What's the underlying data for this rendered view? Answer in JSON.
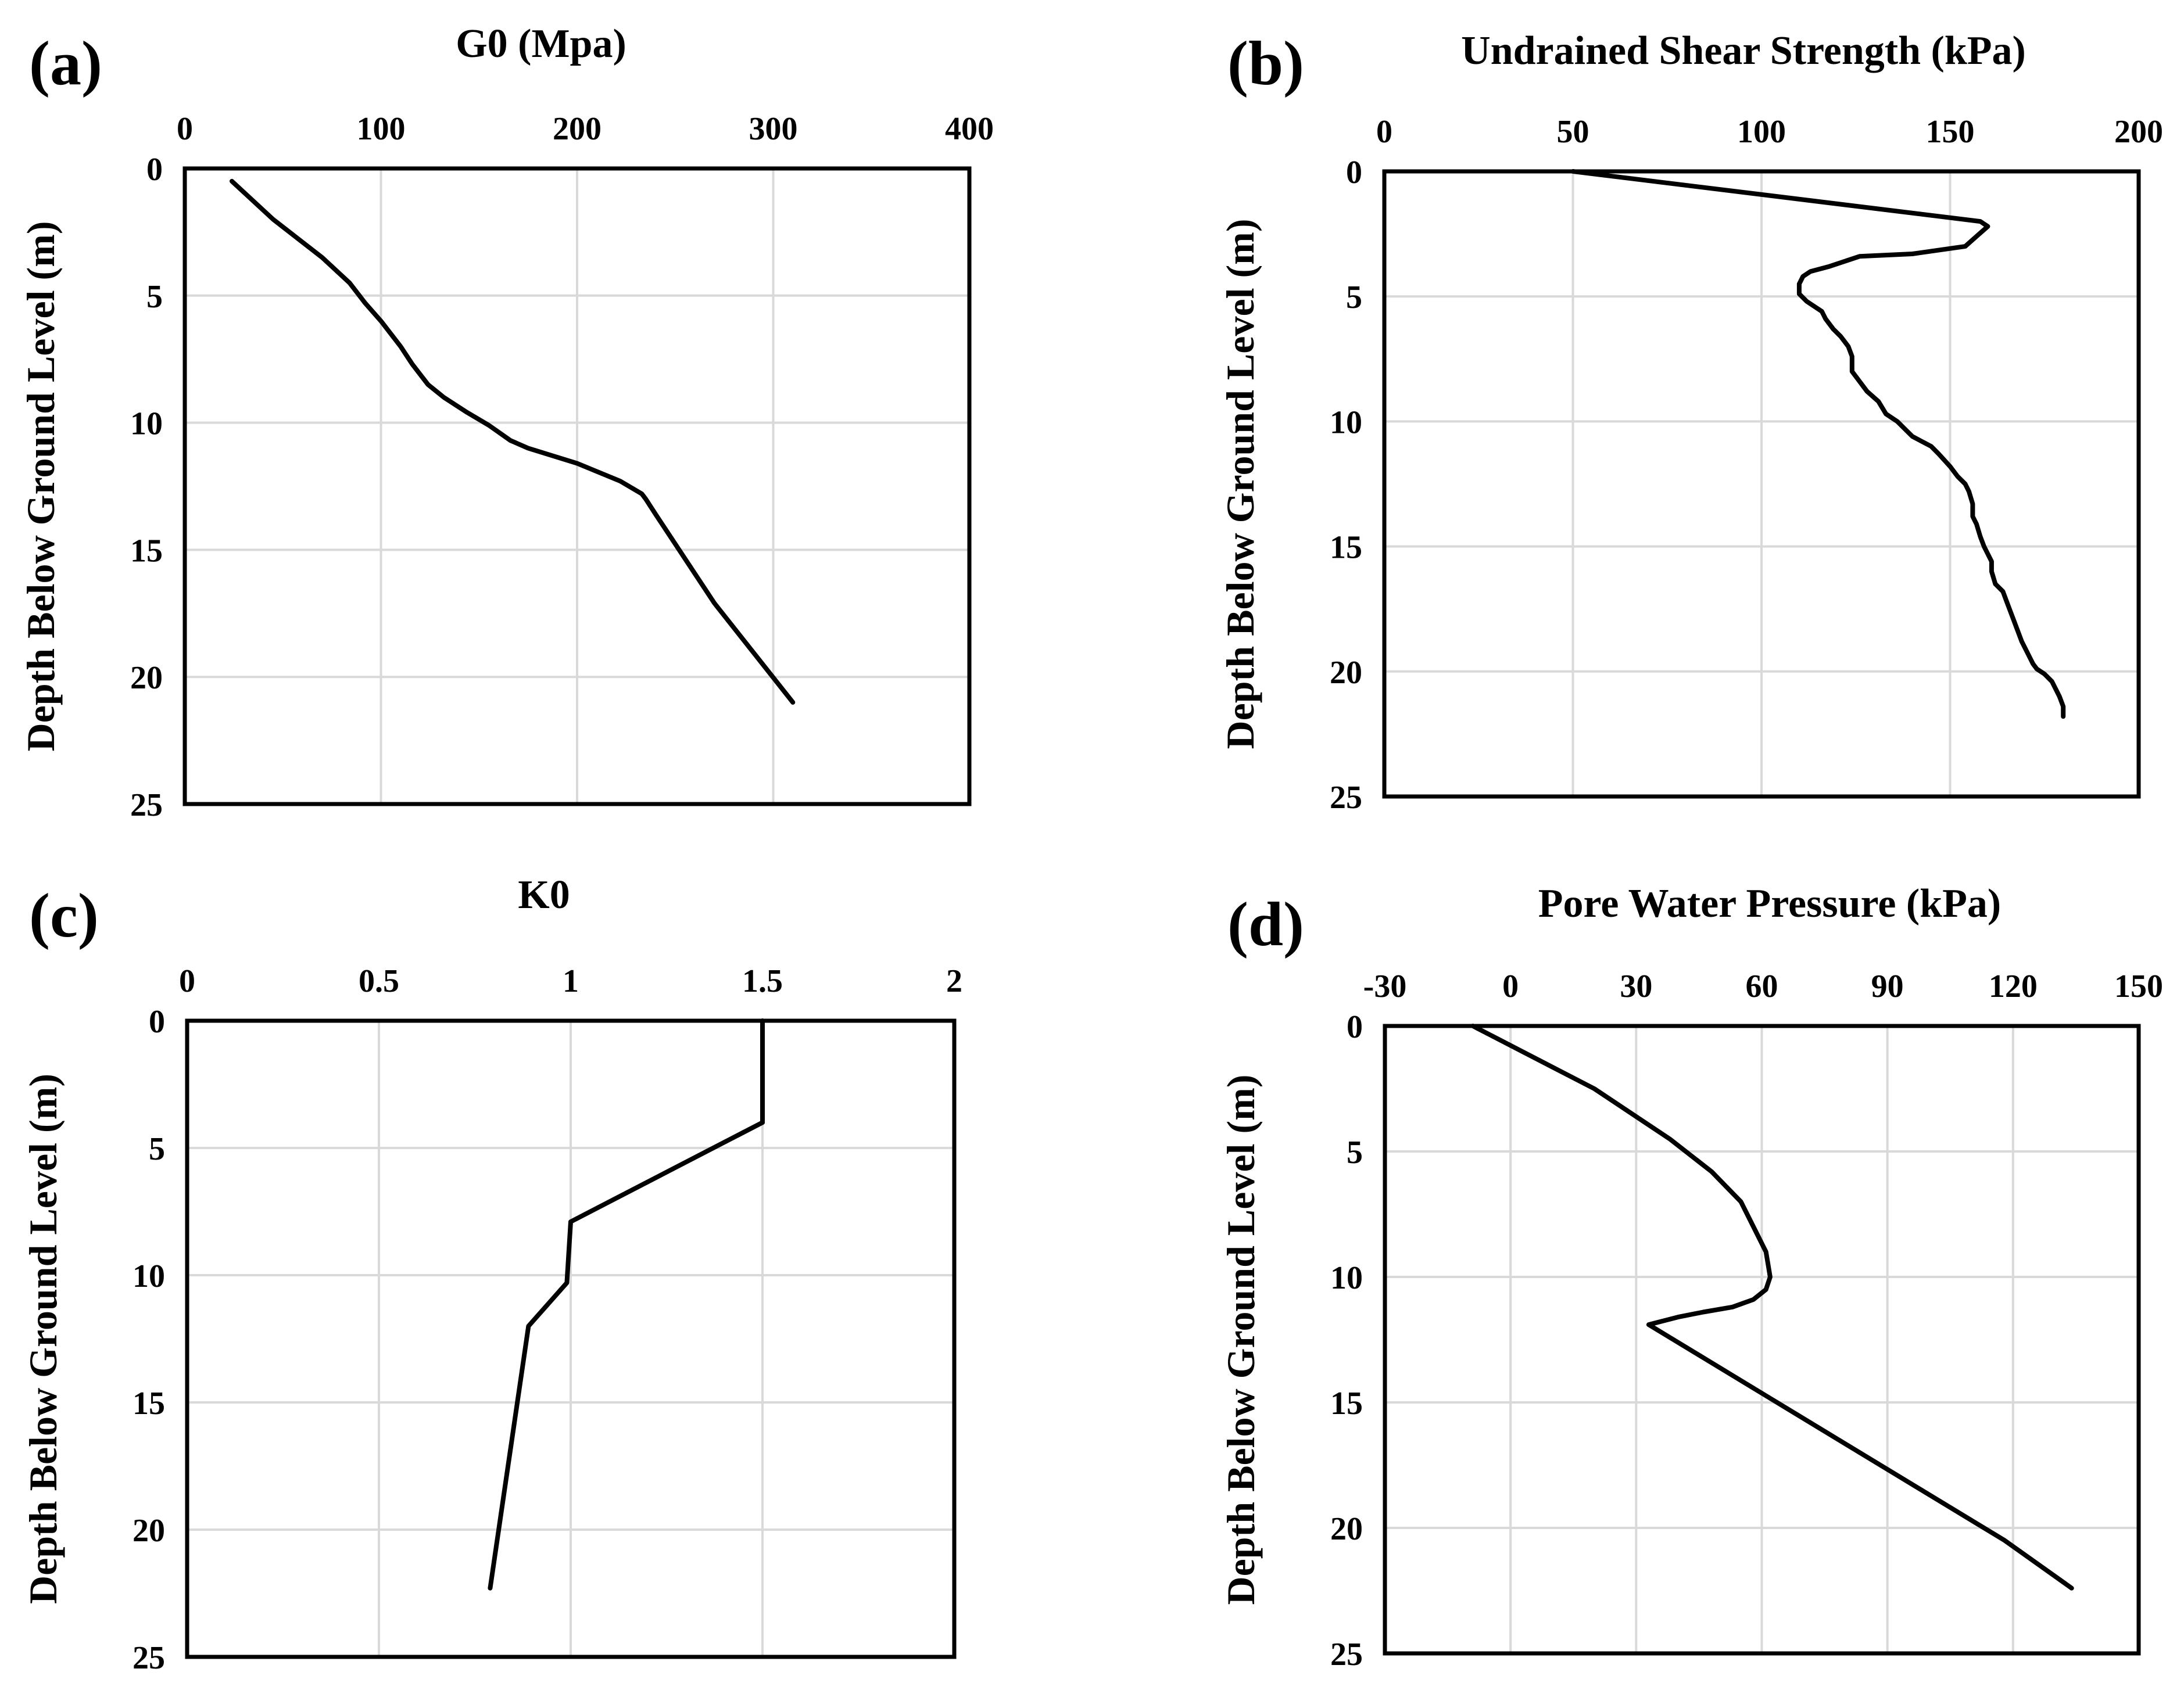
{
  "chart_data": [
    {
      "id": "a",
      "type": "line",
      "panel_label": "(a)",
      "title": "G0 (Mpa)",
      "xlabel": "G0 (Mpa)",
      "ylabel": "Depth Below Ground Level (m)",
      "xlim": [
        0,
        400
      ],
      "ylim": [
        25,
        0
      ],
      "xticks": [
        0,
        100,
        200,
        300,
        400
      ],
      "yticks": [
        0,
        5,
        10,
        15,
        20,
        25
      ],
      "xtick_labels": [
        "0",
        "100",
        "200",
        "300",
        "400"
      ],
      "ytick_labels": [
        "0",
        "5",
        "10",
        "15",
        "20",
        "25"
      ],
      "grid": true,
      "series": [
        {
          "name": "G0",
          "x": [
            24,
            45,
            70,
            84,
            92,
            100,
            110,
            116,
            124,
            132,
            144,
            155,
            166,
            175,
            200,
            222,
            233,
            235,
            240,
            270,
            310
          ],
          "y": [
            0.5,
            2.0,
            3.5,
            4.5,
            5.3,
            6.0,
            7.0,
            7.7,
            8.5,
            9.0,
            9.6,
            10.1,
            10.7,
            11.0,
            11.6,
            12.3,
            12.8,
            13.0,
            13.6,
            17.1,
            21.0
          ]
        }
      ]
    },
    {
      "id": "b",
      "type": "line",
      "panel_label": "(b)",
      "title": "Undrained Shear Strength (kPa)",
      "xlabel": "Undrained Shear Strength (kPa)",
      "ylabel": "Depth Below Ground Level (m)",
      "xlim": [
        0,
        200
      ],
      "ylim": [
        25,
        0
      ],
      "xticks": [
        0,
        50,
        100,
        150,
        200
      ],
      "yticks": [
        0,
        5,
        10,
        15,
        20,
        25
      ],
      "xtick_labels": [
        "0",
        "50",
        "100",
        "150",
        "200"
      ],
      "ytick_labels": [
        "0",
        "5",
        "10",
        "15",
        "20",
        "25"
      ],
      "grid": true,
      "series": [
        {
          "name": "Undrained Shear Strength",
          "x": [
            50,
            158,
            160,
            157,
            154,
            140,
            126,
            122,
            118,
            113,
            111,
            110,
            110,
            112,
            114,
            116,
            117,
            119,
            121,
            123,
            124,
            124,
            126,
            128,
            131,
            133,
            136,
            138,
            140,
            145,
            147,
            150,
            152,
            154,
            155,
            156,
            156,
            157,
            158,
            159,
            160,
            161,
            161,
            162,
            164,
            165,
            166,
            167,
            168,
            169,
            170,
            171,
            172,
            173,
            175,
            177,
            178,
            179,
            180,
            180
          ],
          "y": [
            0.0,
            2.0,
            2.2,
            2.6,
            3.0,
            3.3,
            3.4,
            3.6,
            3.8,
            4.0,
            4.2,
            4.5,
            4.9,
            5.2,
            5.4,
            5.6,
            5.9,
            6.3,
            6.6,
            7.0,
            7.4,
            8.0,
            8.4,
            8.8,
            9.2,
            9.7,
            10.0,
            10.3,
            10.6,
            11.0,
            11.3,
            11.8,
            12.2,
            12.5,
            12.8,
            13.3,
            13.8,
            14.1,
            14.6,
            15.0,
            15.3,
            15.6,
            16.0,
            16.5,
            16.8,
            17.2,
            17.6,
            18.0,
            18.4,
            18.8,
            19.1,
            19.4,
            19.7,
            19.9,
            20.1,
            20.4,
            20.7,
            21.0,
            21.4,
            21.8
          ]
        }
      ]
    },
    {
      "id": "c",
      "type": "line",
      "panel_label": "(c)",
      "title": "K0",
      "xlabel": "K0",
      "ylabel": "Depth Below Ground Level (m)",
      "xlim": [
        0,
        2
      ],
      "ylim": [
        25,
        0
      ],
      "xticks": [
        0,
        0.5,
        1,
        1.5,
        2
      ],
      "yticks": [
        0,
        5,
        10,
        15,
        20,
        25
      ],
      "xtick_labels": [
        "0",
        "0.5",
        "1",
        "1.5",
        "2"
      ],
      "ytick_labels": [
        "0",
        "5",
        "10",
        "15",
        "20",
        "25"
      ],
      "grid": true,
      "series": [
        {
          "name": "K0",
          "x": [
            1.5,
            1.5,
            1.0,
            0.99,
            0.89,
            0.79
          ],
          "y": [
            0.0,
            4.0,
            7.9,
            10.3,
            12.0,
            22.3
          ]
        }
      ]
    },
    {
      "id": "d",
      "type": "line",
      "panel_label": "(d)",
      "title": "Pore Water Pressure (kPa)",
      "xlabel": "Pore Water Pressure (kPa)",
      "ylabel": "Depth Below Ground Level (m)",
      "xlim": [
        -30,
        150
      ],
      "ylim": [
        25,
        0
      ],
      "xticks": [
        -30,
        0,
        30,
        60,
        90,
        120,
        150
      ],
      "yticks": [
        0,
        5,
        10,
        15,
        20,
        25
      ],
      "xtick_labels": [
        "-30",
        "0",
        "30",
        "60",
        "90",
        "120",
        "150"
      ],
      "ytick_labels": [
        "0",
        "5",
        "10",
        "15",
        "20",
        "25"
      ],
      "grid": true,
      "series": [
        {
          "name": "Pore Water Pressure",
          "x": [
            -9,
            20,
            38,
            48,
            55,
            58,
            61,
            62,
            61,
            58,
            53,
            46,
            40,
            33,
            118,
            134
          ],
          "y": [
            0.0,
            2.5,
            4.5,
            5.8,
            7.0,
            8.0,
            9.0,
            10.0,
            10.5,
            10.9,
            11.2,
            11.4,
            11.6,
            11.9,
            20.5,
            22.4
          ]
        }
      ]
    }
  ]
}
